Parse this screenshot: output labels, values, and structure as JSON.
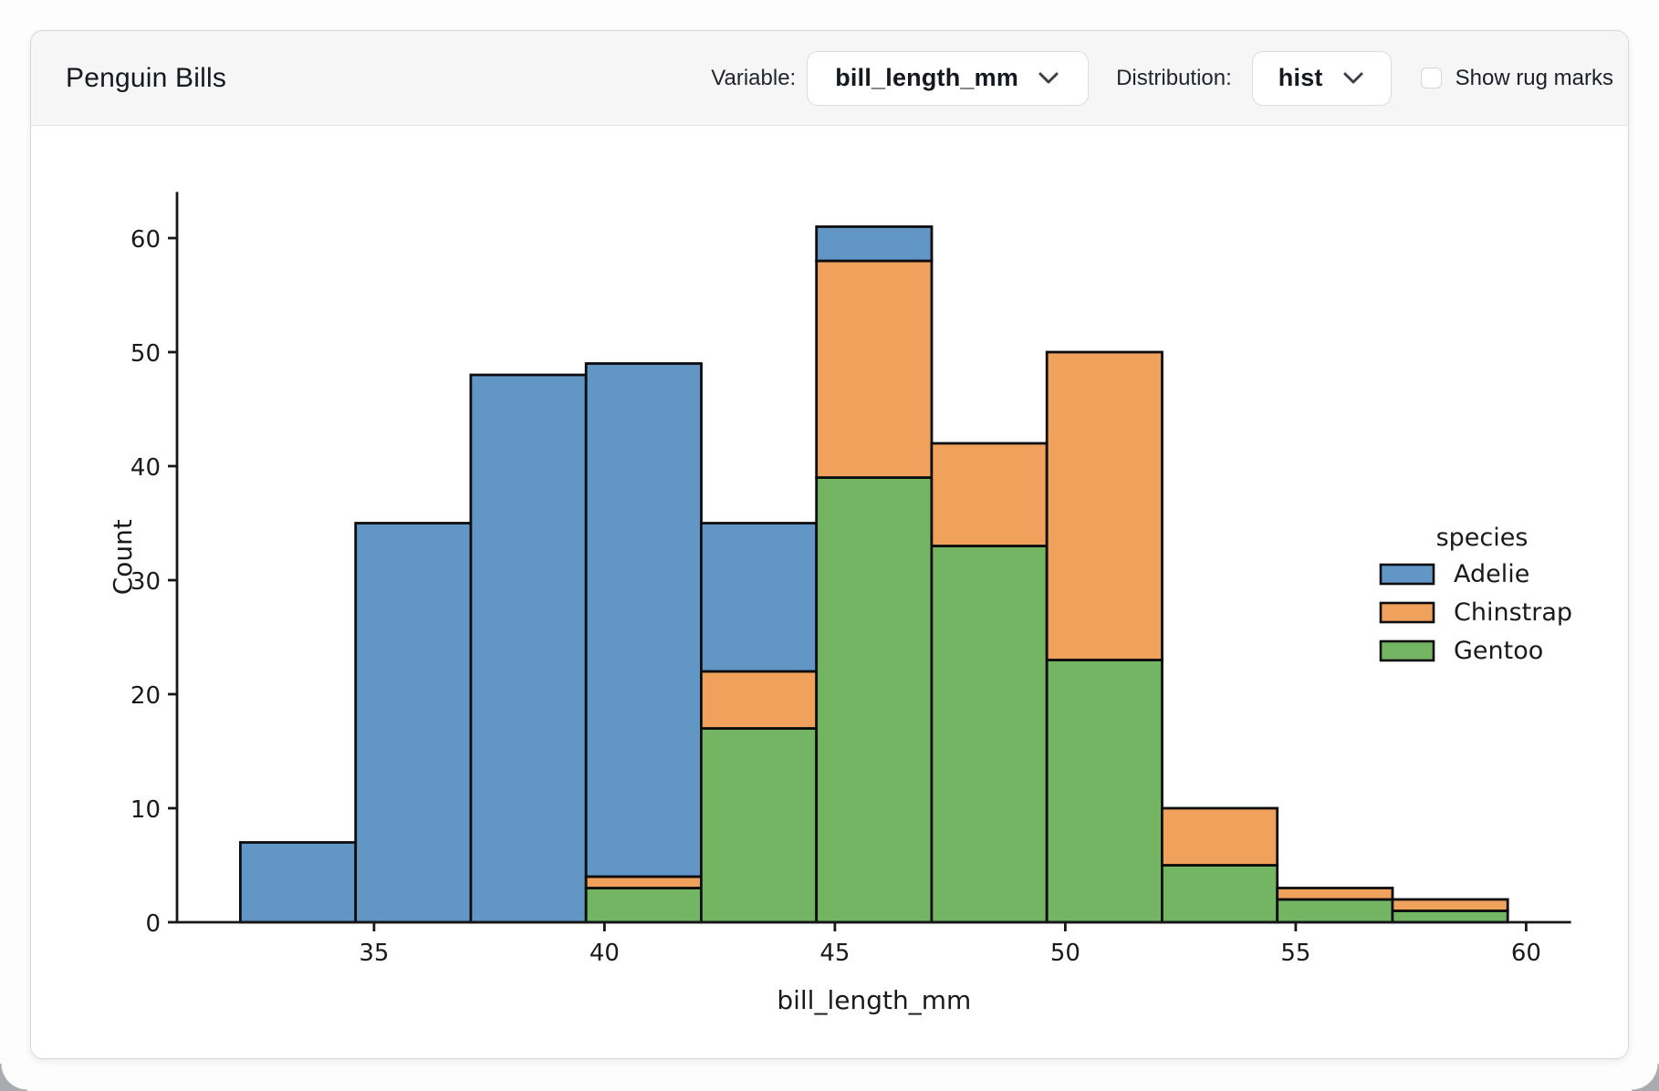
{
  "header": {
    "title": "Penguin Bills",
    "variable_label": "Variable:",
    "variable_value": "bill_length_mm",
    "distribution_label": "Distribution:",
    "distribution_value": "hist",
    "rug_label": "Show rug marks",
    "rug_checked": false
  },
  "icons": {
    "variable_chevron": "chevron-down",
    "distribution_chevron": "chevron-down"
  },
  "ui_colors": {
    "header_bg": "#f6f6f7",
    "card_border": "#d7d7d9",
    "text_dark": "#15181e"
  },
  "chart_data": {
    "type": "bar",
    "subtype": "stacked-histogram",
    "title": "",
    "xlabel": "bill_length_mm",
    "ylabel": "Count",
    "bin_edges": [
      32.1,
      34.6,
      37.1,
      39.6,
      42.1,
      44.6,
      47.1,
      49.6,
      52.1,
      54.6,
      57.1,
      59.6
    ],
    "series": [
      {
        "name": "Adelie",
        "color": "#6297c5",
        "values": [
          7,
          35,
          48,
          45,
          13,
          3,
          0,
          0,
          0,
          0,
          0
        ]
      },
      {
        "name": "Chinstrap",
        "color": "#f0a15c",
        "values": [
          0,
          0,
          0,
          1,
          5,
          19,
          9,
          27,
          5,
          1,
          1
        ]
      },
      {
        "name": "Gentoo",
        "color": "#74b563",
        "values": [
          0,
          0,
          0,
          3,
          17,
          39,
          33,
          23,
          5,
          2,
          1
        ]
      }
    ],
    "stack_bottom_to_top": [
      "Gentoo",
      "Chinstrap",
      "Adelie"
    ],
    "bar_totals": [
      7,
      35,
      48,
      49,
      35,
      61,
      42,
      50,
      10,
      3,
      2
    ],
    "x_ticks": [
      35,
      40,
      45,
      50,
      55,
      60
    ],
    "y_ticks": [
      0,
      10,
      20,
      30,
      40,
      50,
      60
    ],
    "xlim": [
      30.725,
      60.975
    ],
    "ylim": [
      0,
      64.05
    ],
    "grid": false,
    "bar_edge_color": "#0d0d0f",
    "axis_color": "#17171a",
    "tick_text_color": "#1a1a1a",
    "legend": {
      "title": "species",
      "position": "right",
      "entries": [
        "Adelie",
        "Chinstrap",
        "Gentoo"
      ]
    }
  }
}
